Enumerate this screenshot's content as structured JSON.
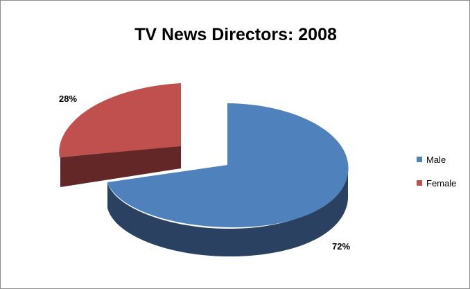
{
  "chart_data": {
    "type": "pie",
    "title": "TV News Directors: 2008",
    "style": "3d-exploded",
    "categories": [
      "Male",
      "Female"
    ],
    "values": [
      72,
      28
    ],
    "unit": "%",
    "data_labels": [
      "72%",
      "28%"
    ],
    "colors": [
      "#4F81BD",
      "#C0504D"
    ],
    "legend": {
      "position": "right",
      "entries": [
        "Male",
        "Female"
      ]
    }
  },
  "colors": {
    "male_side": "#2B4161",
    "female_side": "#632727",
    "frame_border": "#8C8C8C"
  }
}
